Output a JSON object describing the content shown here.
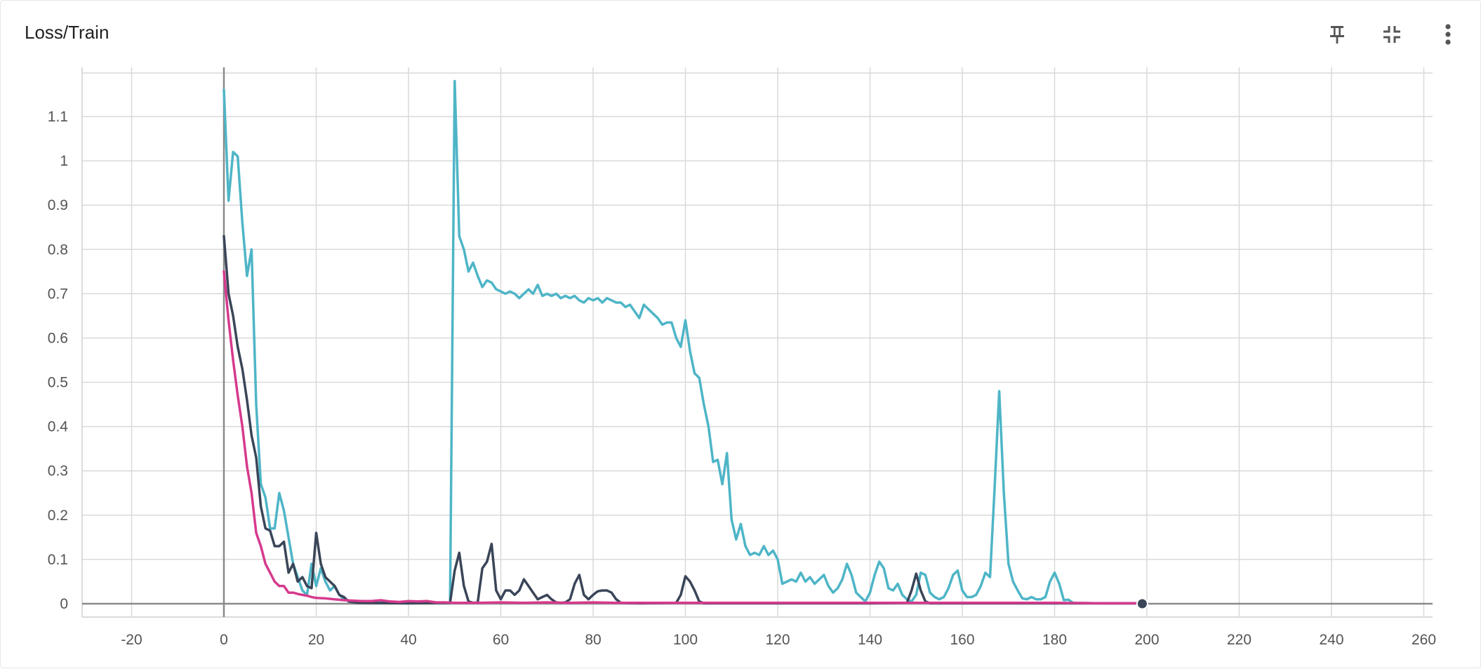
{
  "card": {
    "title": "Loss/Train"
  },
  "toolbar": {
    "pin_icon": "pin-icon",
    "collapse_icon": "collapse-icon",
    "more_icon": "more-vert-icon"
  },
  "chart_data": {
    "type": "line",
    "title": "Loss/Train",
    "xlabel": "",
    "ylabel": "",
    "xlim": [
      -30,
      265
    ],
    "ylim": [
      -0.03,
      1.21
    ],
    "x_ticks": [
      -20,
      0,
      20,
      40,
      60,
      80,
      100,
      120,
      140,
      160,
      180,
      200,
      220,
      240,
      260
    ],
    "x_tick_labels": [
      "-20",
      "0",
      "20",
      "40",
      "60",
      "80",
      "100",
      "120",
      "140",
      "160",
      "180",
      "200",
      "220",
      "240",
      "260"
    ],
    "y_ticks": [
      0,
      0.1,
      0.2,
      0.3,
      0.4,
      0.5,
      0.6,
      0.7,
      0.8,
      0.9,
      1,
      1.1
    ],
    "y_tick_labels": [
      "0",
      "0.1",
      "0.2",
      "0.3",
      "0.4",
      "0.5",
      "0.6",
      "0.7",
      "0.8",
      "0.9",
      "1",
      "1.1"
    ],
    "grid": true,
    "colors": {
      "teal": "#4eb5c7",
      "navy": "#3a4558",
      "magenta": "#d63a8e"
    },
    "series": [
      {
        "color": "#4eb5c7",
        "points": [
          [
            0,
            1.16
          ],
          [
            1,
            0.91
          ],
          [
            2,
            1.02
          ],
          [
            3,
            1.01
          ],
          [
            4,
            0.86
          ],
          [
            5,
            0.74
          ],
          [
            6,
            0.8
          ],
          [
            7,
            0.45
          ],
          [
            8,
            0.27
          ],
          [
            9,
            0.24
          ],
          [
            10,
            0.17
          ],
          [
            11,
            0.17
          ],
          [
            12,
            0.25
          ],
          [
            13,
            0.21
          ],
          [
            14,
            0.15
          ],
          [
            15,
            0.09
          ],
          [
            16,
            0.06
          ],
          [
            17,
            0.03
          ],
          [
            18,
            0.02
          ],
          [
            19,
            0.09
          ],
          [
            20,
            0.04
          ],
          [
            21,
            0.08
          ],
          [
            22,
            0.05
          ],
          [
            23,
            0.03
          ],
          [
            24,
            0.04
          ],
          [
            25,
            0.02
          ],
          [
            26,
            0.01
          ],
          [
            28,
            0.005
          ],
          [
            30,
            0.003
          ],
          [
            40,
            0.002
          ],
          [
            49,
            0.002
          ],
          [
            50,
            1.18
          ],
          [
            51,
            0.83
          ],
          [
            52,
            0.8
          ],
          [
            53,
            0.75
          ],
          [
            54,
            0.77
          ],
          [
            55,
            0.74
          ],
          [
            56,
            0.715
          ],
          [
            57,
            0.73
          ],
          [
            58,
            0.725
          ],
          [
            59,
            0.71
          ],
          [
            60,
            0.705
          ],
          [
            61,
            0.7
          ],
          [
            62,
            0.705
          ],
          [
            63,
            0.7
          ],
          [
            64,
            0.69
          ],
          [
            65,
            0.7
          ],
          [
            66,
            0.71
          ],
          [
            67,
            0.7
          ],
          [
            68,
            0.72
          ],
          [
            69,
            0.695
          ],
          [
            70,
            0.7
          ],
          [
            71,
            0.695
          ],
          [
            72,
            0.7
          ],
          [
            73,
            0.69
          ],
          [
            74,
            0.695
          ],
          [
            75,
            0.69
          ],
          [
            76,
            0.695
          ],
          [
            77,
            0.685
          ],
          [
            78,
            0.68
          ],
          [
            79,
            0.69
          ],
          [
            80,
            0.685
          ],
          [
            81,
            0.69
          ],
          [
            82,
            0.68
          ],
          [
            83,
            0.69
          ],
          [
            84,
            0.685
          ],
          [
            85,
            0.68
          ],
          [
            86,
            0.68
          ],
          [
            87,
            0.67
          ],
          [
            88,
            0.675
          ],
          [
            89,
            0.66
          ],
          [
            90,
            0.645
          ],
          [
            91,
            0.675
          ],
          [
            92,
            0.665
          ],
          [
            93,
            0.655
          ],
          [
            94,
            0.645
          ],
          [
            95,
            0.63
          ],
          [
            96,
            0.635
          ],
          [
            97,
            0.635
          ],
          [
            98,
            0.6
          ],
          [
            99,
            0.58
          ],
          [
            100,
            0.64
          ],
          [
            101,
            0.57
          ],
          [
            102,
            0.52
          ],
          [
            103,
            0.51
          ],
          [
            104,
            0.45
          ],
          [
            105,
            0.4
          ],
          [
            106,
            0.32
          ],
          [
            107,
            0.325
          ],
          [
            108,
            0.27
          ],
          [
            109,
            0.34
          ],
          [
            110,
            0.19
          ],
          [
            111,
            0.145
          ],
          [
            112,
            0.18
          ],
          [
            113,
            0.13
          ],
          [
            114,
            0.11
          ],
          [
            115,
            0.115
          ],
          [
            116,
            0.11
          ],
          [
            117,
            0.13
          ],
          [
            118,
            0.11
          ],
          [
            119,
            0.12
          ],
          [
            120,
            0.1
          ],
          [
            121,
            0.045
          ],
          [
            122,
            0.05
          ],
          [
            123,
            0.055
          ],
          [
            124,
            0.05
          ],
          [
            125,
            0.07
          ],
          [
            126,
            0.05
          ],
          [
            127,
            0.06
          ],
          [
            128,
            0.045
          ],
          [
            129,
            0.055
          ],
          [
            130,
            0.065
          ],
          [
            131,
            0.04
          ],
          [
            132,
            0.025
          ],
          [
            133,
            0.035
          ],
          [
            134,
            0.055
          ],
          [
            135,
            0.09
          ],
          [
            136,
            0.065
          ],
          [
            137,
            0.025
          ],
          [
            138,
            0.015
          ],
          [
            139,
            0.005
          ],
          [
            140,
            0.025
          ],
          [
            141,
            0.065
          ],
          [
            142,
            0.095
          ],
          [
            143,
            0.08
          ],
          [
            144,
            0.035
          ],
          [
            145,
            0.03
          ],
          [
            146,
            0.045
          ],
          [
            147,
            0.02
          ],
          [
            148,
            0.01
          ],
          [
            149,
            0.005
          ],
          [
            150,
            0.02
          ],
          [
            151,
            0.07
          ],
          [
            152,
            0.065
          ],
          [
            153,
            0.025
          ],
          [
            154,
            0.015
          ],
          [
            155,
            0.01
          ],
          [
            156,
            0.015
          ],
          [
            157,
            0.035
          ],
          [
            158,
            0.065
          ],
          [
            159,
            0.075
          ],
          [
            160,
            0.03
          ],
          [
            161,
            0.015
          ],
          [
            162,
            0.015
          ],
          [
            163,
            0.02
          ],
          [
            164,
            0.04
          ],
          [
            165,
            0.07
          ],
          [
            166,
            0.06
          ],
          [
            167,
            0.26
          ],
          [
            168,
            0.48
          ],
          [
            169,
            0.25
          ],
          [
            170,
            0.09
          ],
          [
            171,
            0.05
          ],
          [
            172,
            0.03
          ],
          [
            173,
            0.012
          ],
          [
            174,
            0.01
          ],
          [
            175,
            0.015
          ],
          [
            176,
            0.01
          ],
          [
            177,
            0.01
          ],
          [
            178,
            0.015
          ],
          [
            179,
            0.05
          ],
          [
            180,
            0.07
          ],
          [
            181,
            0.045
          ],
          [
            182,
            0.008
          ],
          [
            183,
            0.009
          ],
          [
            184,
            0.002
          ],
          [
            190,
            0.001
          ],
          [
            199,
            0.001
          ]
        ]
      },
      {
        "color": "#3a4558",
        "points": [
          [
            0,
            0.83
          ],
          [
            1,
            0.7
          ],
          [
            2,
            0.65
          ],
          [
            3,
            0.58
          ],
          [
            4,
            0.53
          ],
          [
            5,
            0.46
          ],
          [
            6,
            0.38
          ],
          [
            7,
            0.33
          ],
          [
            8,
            0.22
          ],
          [
            9,
            0.17
          ],
          [
            10,
            0.165
          ],
          [
            11,
            0.13
          ],
          [
            12,
            0.13
          ],
          [
            13,
            0.14
          ],
          [
            14,
            0.07
          ],
          [
            15,
            0.09
          ],
          [
            16,
            0.05
          ],
          [
            17,
            0.06
          ],
          [
            18,
            0.04
          ],
          [
            19,
            0.035
          ],
          [
            20,
            0.16
          ],
          [
            21,
            0.09
          ],
          [
            22,
            0.06
          ],
          [
            23,
            0.05
          ],
          [
            24,
            0.04
          ],
          [
            25,
            0.02
          ],
          [
            26,
            0.015
          ],
          [
            27,
            0.005
          ],
          [
            29,
            0.002
          ],
          [
            40,
            0.001
          ],
          [
            49,
            0.002
          ],
          [
            50,
            0.075
          ],
          [
            51,
            0.115
          ],
          [
            52,
            0.04
          ],
          [
            53,
            0.005
          ],
          [
            54,
            0.002
          ],
          [
            55,
            0.003
          ],
          [
            56,
            0.08
          ],
          [
            57,
            0.095
          ],
          [
            58,
            0.135
          ],
          [
            59,
            0.03
          ],
          [
            60,
            0.01
          ],
          [
            61,
            0.03
          ],
          [
            62,
            0.03
          ],
          [
            63,
            0.02
          ],
          [
            64,
            0.03
          ],
          [
            65,
            0.055
          ],
          [
            66,
            0.04
          ],
          [
            67,
            0.025
          ],
          [
            68,
            0.01
          ],
          [
            69,
            0.015
          ],
          [
            70,
            0.02
          ],
          [
            71,
            0.01
          ],
          [
            72,
            0.003
          ],
          [
            73,
            0.002
          ],
          [
            74,
            0.003
          ],
          [
            75,
            0.01
          ],
          [
            76,
            0.045
          ],
          [
            77,
            0.065
          ],
          [
            78,
            0.02
          ],
          [
            79,
            0.01
          ],
          [
            80,
            0.02
          ],
          [
            81,
            0.028
          ],
          [
            82,
            0.03
          ],
          [
            83,
            0.03
          ],
          [
            84,
            0.025
          ],
          [
            85,
            0.01
          ],
          [
            86,
            0.002
          ],
          [
            90,
            0.001
          ],
          [
            98,
            0.002
          ],
          [
            99,
            0.02
          ],
          [
            100,
            0.062
          ],
          [
            101,
            0.05
          ],
          [
            102,
            0.03
          ],
          [
            103,
            0.005
          ],
          [
            104,
            0.001
          ],
          [
            140,
            0.001
          ],
          [
            148,
            0.002
          ],
          [
            149,
            0.03
          ],
          [
            150,
            0.068
          ],
          [
            151,
            0.03
          ],
          [
            152,
            0.005
          ],
          [
            153,
            0.001
          ],
          [
            199,
            0.001
          ]
        ]
      },
      {
        "color": "#d63a8e",
        "points": [
          [
            0,
            0.75
          ],
          [
            1,
            0.64
          ],
          [
            2,
            0.55
          ],
          [
            3,
            0.47
          ],
          [
            4,
            0.4
          ],
          [
            5,
            0.31
          ],
          [
            6,
            0.25
          ],
          [
            7,
            0.16
          ],
          [
            8,
            0.13
          ],
          [
            9,
            0.09
          ],
          [
            10,
            0.07
          ],
          [
            11,
            0.05
          ],
          [
            12,
            0.04
          ],
          [
            13,
            0.04
          ],
          [
            14,
            0.025
          ],
          [
            15,
            0.025
          ],
          [
            16,
            0.022
          ],
          [
            17,
            0.02
          ],
          [
            18,
            0.018
          ],
          [
            19,
            0.015
          ],
          [
            20,
            0.013
          ],
          [
            22,
            0.012
          ],
          [
            24,
            0.01
          ],
          [
            26,
            0.008
          ],
          [
            28,
            0.007
          ],
          [
            30,
            0.006
          ],
          [
            32,
            0.006
          ],
          [
            34,
            0.008
          ],
          [
            36,
            0.005
          ],
          [
            38,
            0.004
          ],
          [
            40,
            0.006
          ],
          [
            42,
            0.005
          ],
          [
            44,
            0.006
          ],
          [
            46,
            0.003
          ],
          [
            48,
            0.003
          ],
          [
            50,
            0.002
          ],
          [
            55,
            0.002
          ],
          [
            60,
            0.003
          ],
          [
            65,
            0.002
          ],
          [
            70,
            0.003
          ],
          [
            75,
            0.002
          ],
          [
            80,
            0.003
          ],
          [
            85,
            0.002
          ],
          [
            90,
            0.002
          ],
          [
            95,
            0.002
          ],
          [
            100,
            0.002
          ],
          [
            110,
            0.002
          ],
          [
            120,
            0.002
          ],
          [
            130,
            0.002
          ],
          [
            140,
            0.002
          ],
          [
            150,
            0.002
          ],
          [
            160,
            0.002
          ],
          [
            170,
            0.002
          ],
          [
            180,
            0.002
          ],
          [
            190,
            0.001
          ],
          [
            199,
            0.001
          ]
        ]
      }
    ],
    "end_marker": {
      "x": 199,
      "y": 0,
      "color": "#3a4558"
    }
  }
}
